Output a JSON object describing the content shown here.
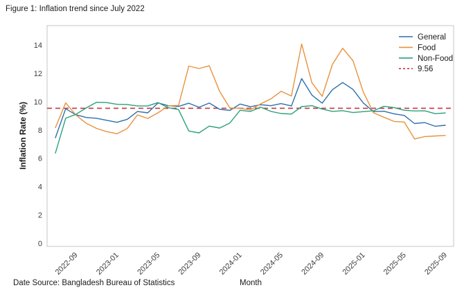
{
  "figure": {
    "title": "Figure 1: Inflation trend since July 2022",
    "source_note": "Date Source: Bangladesh Bureau of Statistics"
  },
  "chart_data": {
    "type": "line",
    "title": "Figure 1: Inflation trend since July 2022",
    "xlabel": "Month",
    "ylabel": "Inflation Rate (%)",
    "x": [
      "2022-07",
      "2022-08",
      "2022-09",
      "2022-10",
      "2022-11",
      "2022-12",
      "2023-01",
      "2023-02",
      "2023-03",
      "2023-04",
      "2023-05",
      "2023-06",
      "2023-07",
      "2023-08",
      "2023-09",
      "2023-10",
      "2023-11",
      "2023-12",
      "2024-01",
      "2024-02",
      "2024-03",
      "2024-04",
      "2024-05",
      "2024-06",
      "2024-07",
      "2024-08",
      "2024-09",
      "2024-10",
      "2024-11",
      "2024-12",
      "2025-01",
      "2025-02",
      "2025-03",
      "2025-04",
      "2025-05",
      "2025-06",
      "2025-07",
      "2025-08",
      "2025-09"
    ],
    "series": [
      {
        "name": "General",
        "color": "#2d6fad",
        "values": [
          7.48,
          9.52,
          9.1,
          8.91,
          8.85,
          8.71,
          8.57,
          8.78,
          9.33,
          9.24,
          9.94,
          9.74,
          9.69,
          9.92,
          9.63,
          9.93,
          9.49,
          9.41,
          9.86,
          9.67,
          9.81,
          9.74,
          9.89,
          9.72,
          11.66,
          10.49,
          9.92,
          10.87,
          11.38,
          10.89,
          9.94,
          9.32,
          9.35,
          9.17,
          9.05,
          8.48,
          8.55,
          8.29,
          8.36
        ]
      },
      {
        "name": "Food",
        "color": "#e8913c",
        "values": [
          8.19,
          9.94,
          9.08,
          8.5,
          8.14,
          7.91,
          7.76,
          8.13,
          9.09,
          8.84,
          9.24,
          9.73,
          9.76,
          12.54,
          12.37,
          12.56,
          10.76,
          9.58,
          9.56,
          9.44,
          9.87,
          10.22,
          10.76,
          10.42,
          14.1,
          11.36,
          10.4,
          12.66,
          13.8,
          12.92,
          10.72,
          9.24,
          8.93,
          8.63,
          8.59,
          7.39,
          7.56,
          7.6,
          7.64
        ]
      },
      {
        "name": "Non-Food",
        "color": "#2aa07d",
        "values": [
          6.39,
          8.85,
          9.13,
          9.58,
          9.98,
          9.96,
          9.84,
          9.82,
          9.72,
          9.72,
          9.96,
          9.6,
          9.47,
          7.95,
          7.82,
          8.3,
          8.16,
          8.52,
          9.42,
          9.33,
          9.64,
          9.34,
          9.19,
          9.15,
          9.68,
          9.74,
          9.5,
          9.34,
          9.39,
          9.26,
          9.32,
          9.38,
          9.7,
          9.61,
          9.42,
          9.37,
          9.38,
          9.18,
          9.23
        ]
      }
    ],
    "reference_line": {
      "label": "9.56",
      "value": 9.56,
      "color": "#c2383d",
      "style": "dashed"
    },
    "ylim": [
      -0.2,
      15.4
    ],
    "yticks": [
      0,
      2,
      4,
      6,
      8,
      10,
      12,
      14
    ],
    "xticks": {
      "indices": [
        2,
        6,
        10,
        14,
        18,
        22,
        26,
        30,
        34,
        38
      ],
      "labels": [
        "2022-09",
        "2023-01",
        "2023-05",
        "2023-09",
        "2024-01",
        "2024-05",
        "2024-09",
        "2025-01",
        "2025-05",
        "2025-09"
      ]
    },
    "legend_position": "upper right",
    "grid": false
  },
  "colors": {
    "axis": "#c4c4c4",
    "tick_text": "#3d3d3d",
    "legend_text": "#1a1a1a"
  }
}
